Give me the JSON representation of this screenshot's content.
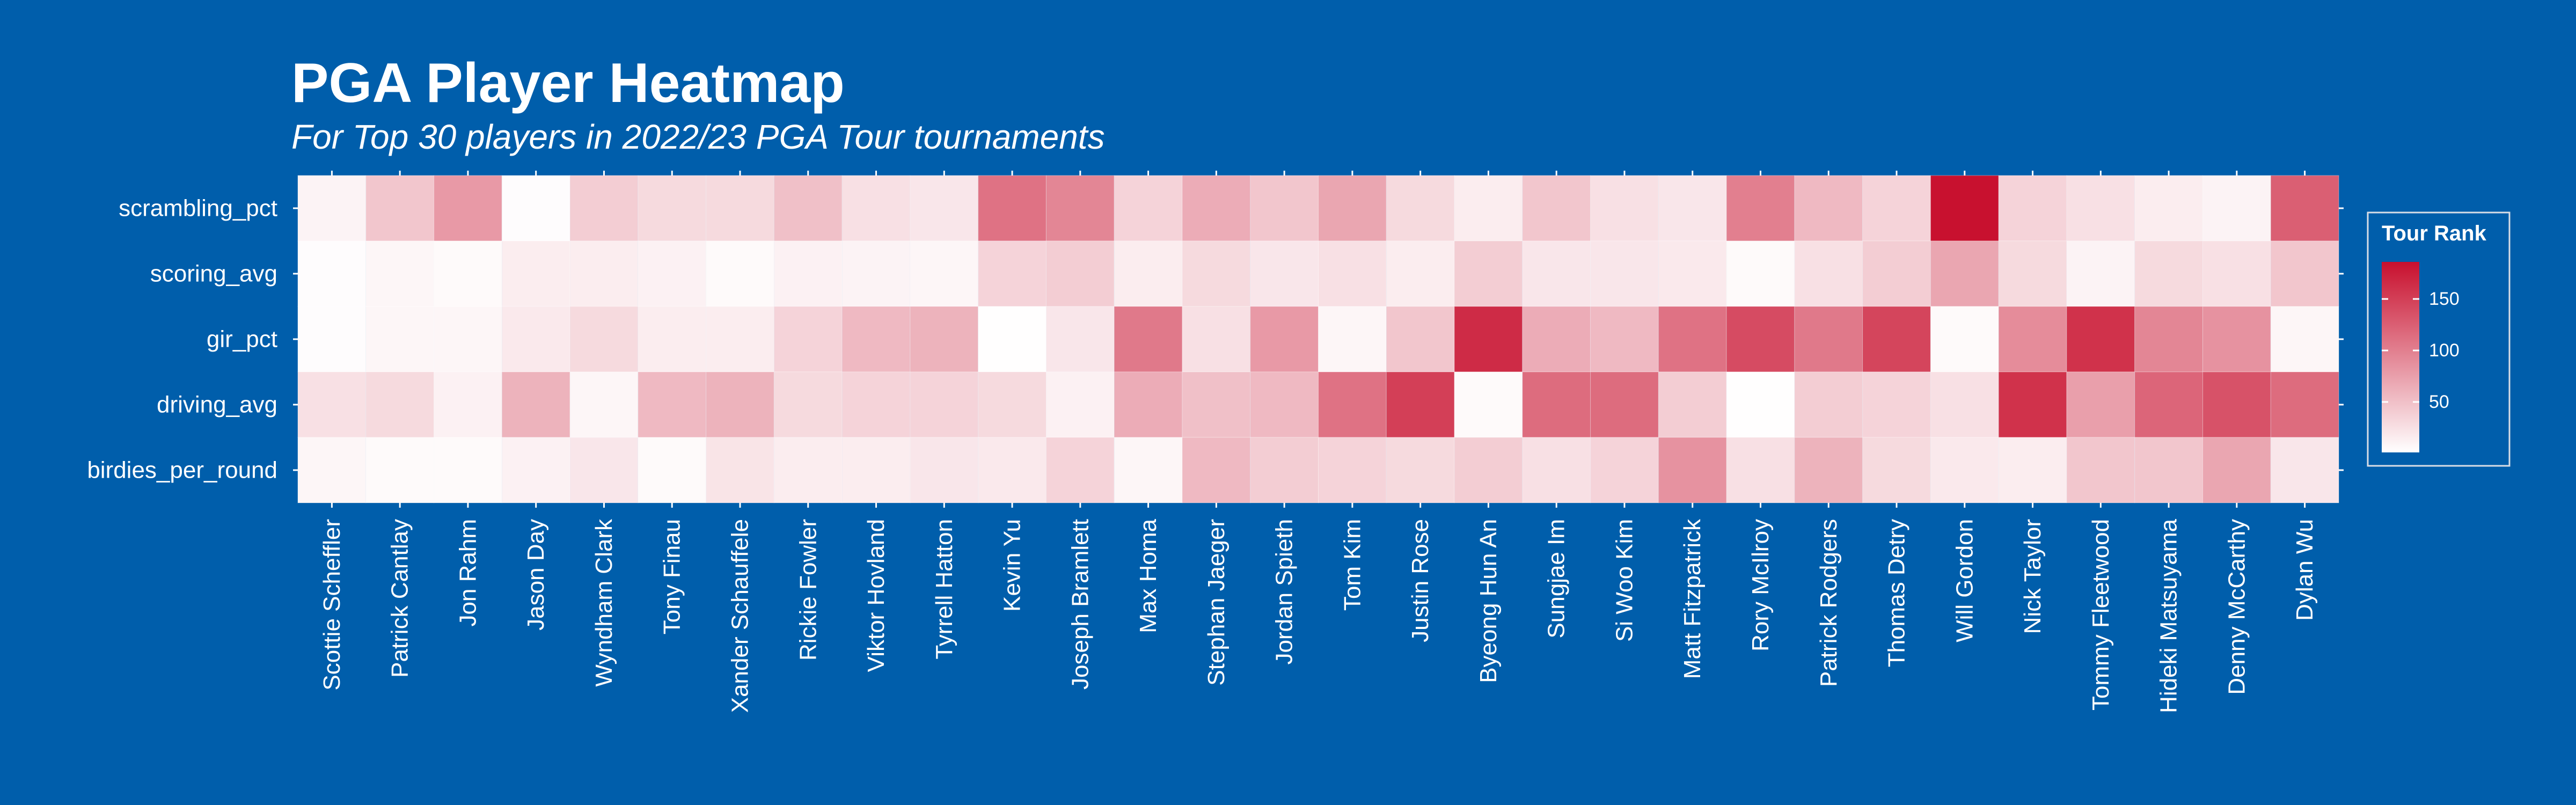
{
  "chart_data": {
    "type": "heatmap",
    "title": "PGA Player Heatmap",
    "subtitle": "For Top 30 players in 2022/23 PGA Tour tournaments",
    "x_categories": [
      "Scottie Scheffler",
      "Patrick Cantlay",
      "Jon Rahm",
      "Jason Day",
      "Wyndham Clark",
      "Tony Finau",
      "Xander Schauffele",
      "Rickie Fowler",
      "Viktor Hovland",
      "Tyrrell Hatton",
      "Kevin Yu",
      "Joseph Bramlett",
      "Max Homa",
      "Stephan Jaeger",
      "Jordan Spieth",
      "Tom Kim",
      "Justin Rose",
      "Byeong Hun An",
      "Sungjae Im",
      "Si Woo Kim",
      "Matt Fitzpatrick",
      "Rory McIlroy",
      "Patrick Rodgers",
      "Thomas Detry",
      "Will Gordon",
      "Nick Taylor",
      "Tommy Fleetwood",
      "Hideki Matsuyama",
      "Denny McCarthy",
      "Dylan Wu"
    ],
    "y_categories": [
      "scrambling_pct",
      "scoring_avg",
      "gir_pct",
      "driving_avg",
      "birdies_per_round"
    ],
    "values": [
      [
        10,
        45,
        80,
        3,
        40,
        30,
        30,
        50,
        25,
        20,
        110,
        95,
        35,
        65,
        45,
        70,
        30,
        15,
        45,
        25,
        20,
        100,
        55,
        35,
        185,
        35,
        25,
        15,
        10,
        125
      ],
      [
        3,
        8,
        5,
        15,
        15,
        12,
        5,
        12,
        10,
        8,
        35,
        40,
        15,
        30,
        20,
        25,
        15,
        40,
        20,
        20,
        18,
        5,
        25,
        40,
        70,
        30,
        10,
        30,
        25,
        45
      ],
      [
        3,
        8,
        8,
        18,
        30,
        15,
        15,
        35,
        55,
        60,
        2,
        20,
        105,
        25,
        80,
        8,
        45,
        165,
        65,
        55,
        110,
        140,
        105,
        145,
        5,
        90,
        160,
        95,
        85,
        8
      ],
      [
        25,
        30,
        12,
        60,
        8,
        55,
        60,
        30,
        35,
        35,
        30,
        12,
        65,
        50,
        55,
        110,
        150,
        5,
        115,
        115,
        40,
        2,
        40,
        35,
        25,
        160,
        75,
        120,
        135,
        115
      ],
      [
        8,
        5,
        5,
        12,
        20,
        5,
        22,
        15,
        15,
        20,
        18,
        35,
        8,
        55,
        40,
        35,
        30,
        40,
        25,
        35,
        85,
        25,
        60,
        30,
        18,
        15,
        45,
        45,
        70,
        20
      ]
    ],
    "legend": {
      "title": "Tour Rank",
      "min": 1,
      "max": 186,
      "ticks": [
        50,
        100,
        150
      ],
      "colors": [
        "#ffffff",
        "#c8102e"
      ],
      "placement": "right"
    }
  }
}
